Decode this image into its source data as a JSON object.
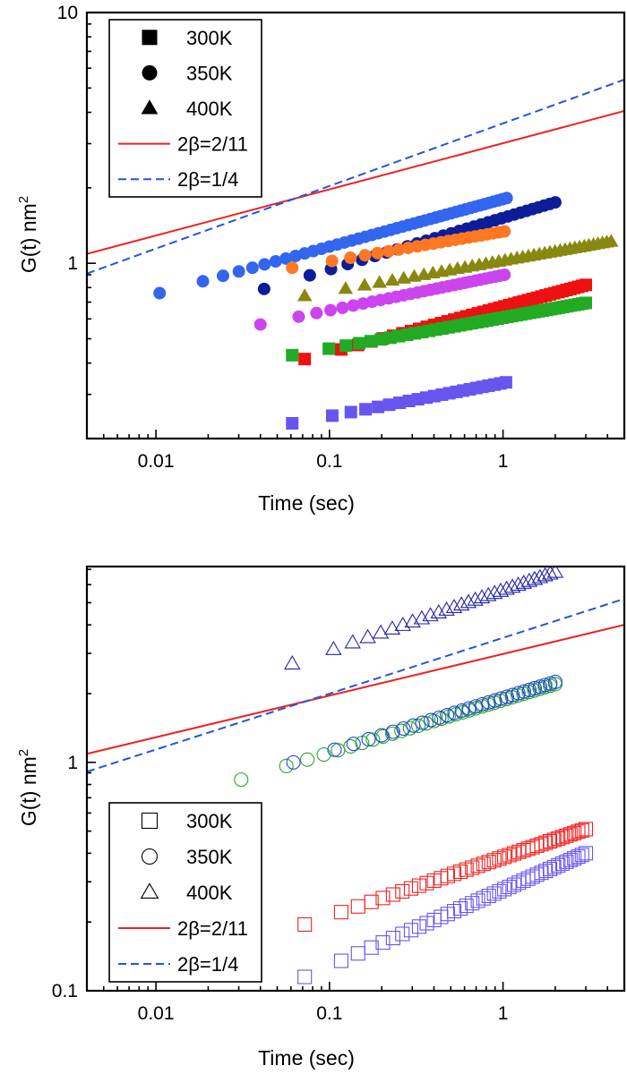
{
  "chart_data": [
    {
      "type": "scatter",
      "title": "",
      "xlabel": "Time (sec)",
      "ylabel": "G(t) nm",
      "ylabel_superscript": "2",
      "x_scale": "log",
      "y_scale": "log",
      "xlim": [
        0.004,
        5
      ],
      "ylim": [
        0.2,
        10
      ],
      "x_ticks": [
        {
          "value": 0.01,
          "label": "0.01"
        },
        {
          "value": 0.1,
          "label": "0.1"
        },
        {
          "value": 1,
          "label": "1"
        }
      ],
      "y_ticks": [
        {
          "value": 1,
          "label": "1"
        },
        {
          "value": 10,
          "label": "10"
        }
      ],
      "grid": false,
      "legend_position": "top-left",
      "legend": [
        {
          "label": "300K",
          "marker": "square",
          "filled": true,
          "color": "#000000"
        },
        {
          "label": "350K",
          "marker": "circle",
          "filled": true,
          "color": "#000000"
        },
        {
          "label": "400K",
          "marker": "triangle",
          "filled": true,
          "color": "#000000"
        },
        {
          "label": "2β=2/11",
          "line": "solid",
          "color": "#ee2222"
        },
        {
          "label": "2β=1/4",
          "line": "dashed",
          "color": "#2255dd"
        }
      ],
      "lines": [
        {
          "label": "2β=2/11",
          "style": "solid",
          "color": "#ee2222",
          "x": [
            0.004,
            5
          ],
          "y": [
            1.09,
            4.05
          ]
        },
        {
          "label": "2β=1/4",
          "style": "dashed",
          "color": "#2255dd",
          "x": [
            0.004,
            5
          ],
          "y": [
            0.91,
            5.4
          ]
        }
      ],
      "series": [
        {
          "marker": "circle",
          "filled": true,
          "color": "#3366ee",
          "x_start": 0.0105,
          "x_end": 1.05,
          "y_start": 0.76,
          "y_end": 1.82,
          "count": 45
        },
        {
          "marker": "circle",
          "filled": true,
          "color": "#0d1d99",
          "x_start": 0.042,
          "x_end": 2.0,
          "y_start": 0.79,
          "y_end": 1.75,
          "count": 30
        },
        {
          "marker": "circle",
          "filled": true,
          "color": "#ff7722",
          "x_start": 0.061,
          "x_end": 1.02,
          "y_start": 0.96,
          "y_end": 1.34,
          "count": 22
        },
        {
          "marker": "triangle",
          "filled": true,
          "color": "#888811",
          "x_start": 0.072,
          "x_end": 4.2,
          "y_start": 0.74,
          "y_end": 1.22,
          "count": 40
        },
        {
          "marker": "circle",
          "filled": true,
          "color": "#cc44ee",
          "x_start": 0.04,
          "x_end": 1.02,
          "y_start": 0.57,
          "y_end": 0.9,
          "count": 30
        },
        {
          "marker": "square",
          "filled": true,
          "color": "#ee1111",
          "x_start": 0.072,
          "x_end": 3.0,
          "y_start": 0.415,
          "y_end": 0.82,
          "count": 42
        },
        {
          "marker": "square",
          "filled": true,
          "color": "#22aa22",
          "x_start": 0.061,
          "x_end": 3.0,
          "y_start": 0.43,
          "y_end": 0.695,
          "count": 45
        },
        {
          "marker": "square",
          "filled": true,
          "color": "#6655ee",
          "x_start": 0.061,
          "x_end": 1.04,
          "y_start": 0.23,
          "y_end": 0.335,
          "count": 22
        }
      ]
    },
    {
      "type": "scatter",
      "title": "",
      "xlabel": "Time (sec)",
      "ylabel": "G(t) nm",
      "ylabel_superscript": "2",
      "x_scale": "log",
      "y_scale": "log",
      "xlim": [
        0.004,
        5
      ],
      "ylim": [
        0.1,
        7.2
      ],
      "x_ticks": [
        {
          "value": 0.01,
          "label": "0.01"
        },
        {
          "value": 0.1,
          "label": "0.1"
        },
        {
          "value": 1,
          "label": "1"
        }
      ],
      "y_ticks": [
        {
          "value": 0.1,
          "label": "0.1"
        },
        {
          "value": 1,
          "label": "1"
        }
      ],
      "grid": false,
      "legend_position": "bottom-left",
      "legend": [
        {
          "label": "300K",
          "marker": "square",
          "filled": false,
          "color": "#000000"
        },
        {
          "label": "350K",
          "marker": "circle",
          "filled": false,
          "color": "#000000"
        },
        {
          "label": "400K",
          "marker": "triangle",
          "filled": false,
          "color": "#000000"
        },
        {
          "label": "2β=2/11",
          "line": "solid",
          "color": "#ee2222"
        },
        {
          "label": "2β=1/4",
          "line": "dashed",
          "color": "#2255dd"
        }
      ],
      "lines": [
        {
          "label": "2β=2/11",
          "style": "solid",
          "color": "#ee2222",
          "x": [
            0.004,
            5
          ],
          "y": [
            1.09,
            4.0
          ]
        },
        {
          "label": "2β=1/4",
          "style": "dashed",
          "color": "#2255dd",
          "x": [
            0.004,
            5
          ],
          "y": [
            0.91,
            5.2
          ]
        }
      ],
      "series": [
        {
          "marker": "triangle",
          "filled": false,
          "color": "#2222aa",
          "x_start": 0.061,
          "x_end": 2.0,
          "y_start": 2.7,
          "y_end": 6.8,
          "count": 30
        },
        {
          "marker": "circle",
          "filled": false,
          "color": "#22aa22",
          "x_start": 0.031,
          "x_end": 2.0,
          "y_start": 0.84,
          "y_end": 2.2,
          "count": 35
        },
        {
          "marker": "circle",
          "filled": false,
          "color": "#2244dd",
          "x_start": 0.062,
          "x_end": 2.0,
          "y_start": 1.0,
          "y_end": 2.25,
          "count": 30
        },
        {
          "marker": "square",
          "filled": false,
          "color": "#ee2222",
          "x_start": 0.072,
          "x_end": 3.0,
          "y_start": 0.195,
          "y_end": 0.51,
          "count": 42
        },
        {
          "marker": "square",
          "filled": false,
          "color": "#6655ee",
          "x_start": 0.072,
          "x_end": 3.0,
          "y_start": 0.115,
          "y_end": 0.4,
          "count": 42
        }
      ]
    }
  ]
}
